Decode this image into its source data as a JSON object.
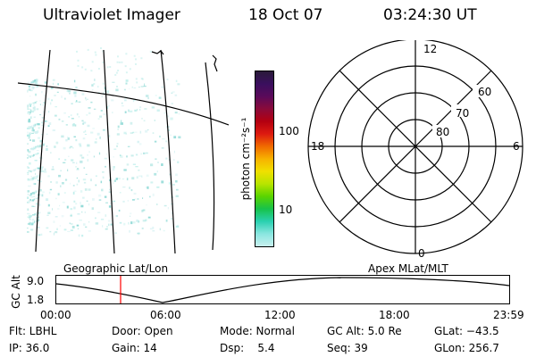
{
  "header": {
    "instrument": "Ultraviolet Imager",
    "date": "18 Oct 07",
    "time": "03:24:30 UT"
  },
  "colorbar": {
    "unit_label": "photon cm⁻²s⁻¹",
    "ticks": [
      "100",
      "10"
    ],
    "colors": [
      "#2a1a3a",
      "#3a0f5e",
      "#5a0a5a",
      "#8a0a3a",
      "#b40010",
      "#dd1a10",
      "#f06a00",
      "#f7b200",
      "#f0e000",
      "#b8e400",
      "#5ad400",
      "#17c24a",
      "#2ad0b0",
      "#8ae6e0",
      "#c8f0ee"
    ]
  },
  "polar": {
    "lat_labels": [
      "60",
      "70",
      "80"
    ],
    "mlt_labels": {
      "top": "12",
      "bottom": "0",
      "left": "18",
      "right": "6"
    }
  },
  "orbit": {
    "y_label": "GC Alt",
    "y_ticks": [
      "9.0",
      "1.8"
    ],
    "left_caption": "Geographic Lat/Lon",
    "right_caption": "Apex MLat/MLT",
    "x_ticks": [
      "00:00",
      "06:00",
      "12:00",
      "18:00",
      "23:59"
    ],
    "marker_time": "03:24:30",
    "colors": {
      "curve": "#000000",
      "marker": "#ff0000"
    }
  },
  "status": {
    "row1": {
      "flt": "Flt: LBHL",
      "door": "Door: Open",
      "mode": "Mode: Normal",
      "gc_alt": "GC Alt: 5.0 Re",
      "glat": "GLat: −43.5"
    },
    "row2": {
      "ip": "IP: 36.0",
      "gain": "Gain: 14",
      "dsp": "Dsp:    5.4",
      "seq": "Seq: 39",
      "glon": "GLon: 256.7"
    }
  }
}
